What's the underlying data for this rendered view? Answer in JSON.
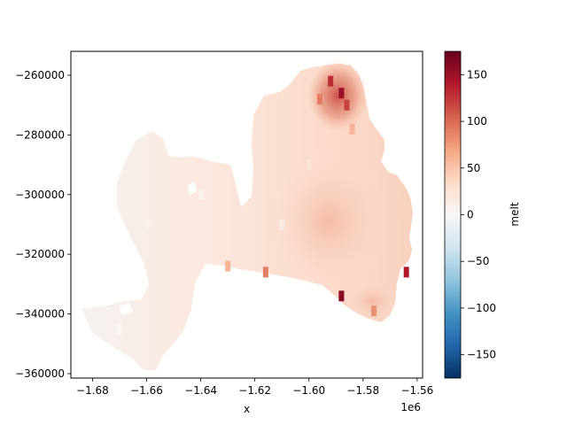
{
  "chart_data": {
    "type": "heatmap",
    "title": "",
    "xlabel": "x",
    "ylabel": "",
    "x_offset_label": "1e6",
    "xlim": [
      -1.688,
      -1.558
    ],
    "ylim": [
      -361500,
      -252000
    ],
    "x_ticks": [
      {
        "value": -1.68,
        "label": "−1.68"
      },
      {
        "value": -1.66,
        "label": "−1.66"
      },
      {
        "value": -1.64,
        "label": "−1.64"
      },
      {
        "value": -1.62,
        "label": "−1.62"
      },
      {
        "value": -1.6,
        "label": "−1.60"
      },
      {
        "value": -1.58,
        "label": "−1.58"
      },
      {
        "value": -1.56,
        "label": "−1.56"
      }
    ],
    "y_ticks": [
      {
        "value": -260000,
        "label": "−260000"
      },
      {
        "value": -280000,
        "label": "−280000"
      },
      {
        "value": -300000,
        "label": "−300000"
      },
      {
        "value": -320000,
        "label": "−320000"
      },
      {
        "value": -340000,
        "label": "−340000"
      },
      {
        "value": -360000,
        "label": "−360000"
      }
    ],
    "colorbar": {
      "label": "melt",
      "colormap": "RdBu_r",
      "range": [
        -175,
        175
      ],
      "ticks": [
        {
          "value": 150,
          "label": "150"
        },
        {
          "value": 100,
          "label": "100"
        },
        {
          "value": 50,
          "label": "50"
        },
        {
          "value": 0,
          "label": "0"
        },
        {
          "value": -50,
          "label": "−50"
        },
        {
          "value": -100,
          "label": "−100"
        },
        {
          "value": -150,
          "label": "−150"
        }
      ]
    },
    "description_points": [
      {
        "x": -1.592,
        "y": -262000,
        "melt": 130
      },
      {
        "x": -1.588,
        "y": -266000,
        "melt": 150
      },
      {
        "x": -1.586,
        "y": -270000,
        "melt": 120
      },
      {
        "x": -1.596,
        "y": -268000,
        "melt": 90
      },
      {
        "x": -1.584,
        "y": -278000,
        "melt": 60
      },
      {
        "x": -1.6,
        "y": -290000,
        "melt": 25
      },
      {
        "x": -1.61,
        "y": -310000,
        "melt": 15
      },
      {
        "x": -1.64,
        "y": -300000,
        "melt": 8
      },
      {
        "x": -1.66,
        "y": -310000,
        "melt": 6
      },
      {
        "x": -1.67,
        "y": -345000,
        "melt": 3
      },
      {
        "x": -1.63,
        "y": -324000,
        "melt": 60
      },
      {
        "x": -1.616,
        "y": -326000,
        "melt": 90
      },
      {
        "x": -1.588,
        "y": -334000,
        "melt": 160
      },
      {
        "x": -1.576,
        "y": -339000,
        "melt": 80
      },
      {
        "x": -1.566,
        "y": -305000,
        "melt": 40
      },
      {
        "x": -1.564,
        "y": -326000,
        "melt": 140
      }
    ]
  }
}
